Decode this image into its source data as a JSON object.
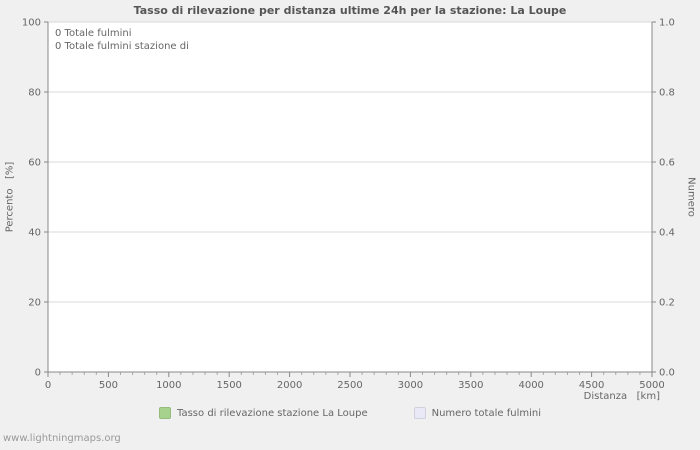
{
  "page": {
    "watermark": "www.lightningmaps.org"
  },
  "chart_data": {
    "type": "line",
    "title": "Tasso di rilevazione per distanza ultime 24h per la stazione: La Loupe",
    "xlabel": "Distanza   [km]",
    "ylabel_left": "Percento   [%]",
    "ylabel_right": "Numero",
    "xlim": [
      0,
      5000
    ],
    "x_major_ticks": [
      0,
      500,
      1000,
      1500,
      2000,
      2500,
      3000,
      3500,
      4000,
      4500,
      5000
    ],
    "x_minor_step": 100,
    "ylim_left": [
      0,
      100
    ],
    "y_ticks_left": [
      0,
      20,
      40,
      60,
      80,
      100
    ],
    "ylim_right": [
      0.0,
      1.0
    ],
    "y_ticks_right": [
      "0.0",
      "0.2",
      "0.4",
      "0.6",
      "0.8",
      "1.0"
    ],
    "grid": true,
    "legend_position": "bottom",
    "annotations": [
      "0 Totale fulmini",
      "0 Totale fulmini stazione di"
    ],
    "series": [
      {
        "name": "Tasso di rilevazione stazione La Loupe",
        "color": "#a6d28e",
        "values": []
      },
      {
        "name": "Numero totale fulmini",
        "color": "#e9e9f8",
        "values": []
      }
    ]
  }
}
